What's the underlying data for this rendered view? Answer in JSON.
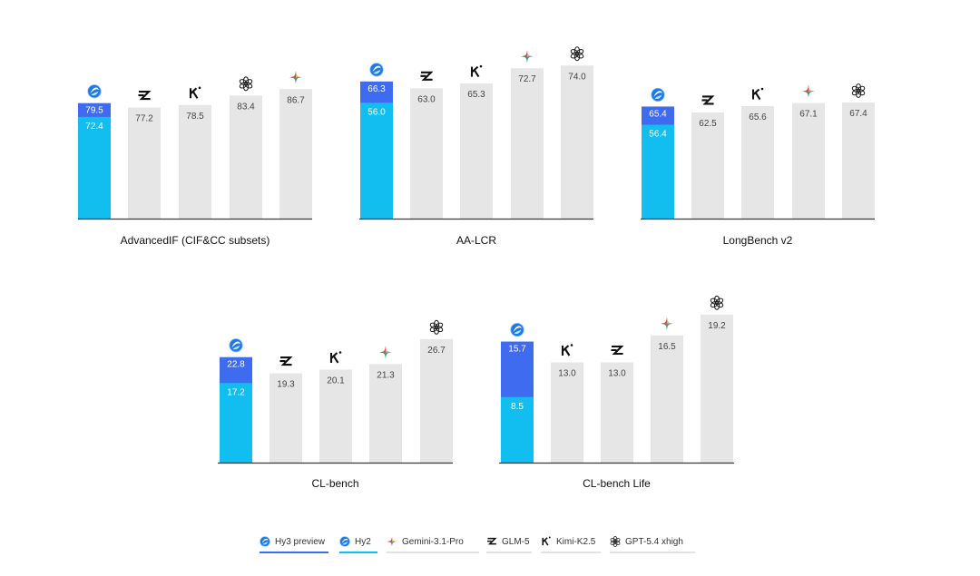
{
  "colors": {
    "hy3": "#3f6bf0",
    "hy2": "#12bef0",
    "other": "#e6e6e6",
    "axis": "#3a3a3a",
    "legend_line_other": "#e2e2e2"
  },
  "models": {
    "hy3": "Hy3 preview",
    "hy2": "Hy2",
    "gemini": "Gemini-3.1-Pro",
    "glm": "GLM-5",
    "kimi": "Kimi-K2.5",
    "gpt": "GPT-5.4 xhigh"
  },
  "legend": [
    {
      "key": "hy3",
      "label": "Hy3 preview",
      "icon": "hunyuan-icon",
      "line_color": "#3f6bf0"
    },
    {
      "key": "hy2",
      "label": "Hy2",
      "icon": "hunyuan-icon",
      "line_color": "#12bef0"
    },
    {
      "key": "gemini",
      "label": "Gemini-3.1-Pro",
      "icon": "gemini-icon",
      "line_color": "#e2e2e2"
    },
    {
      "key": "glm",
      "label": "GLM-5",
      "icon": "glm-icon",
      "line_color": "#e2e2e2"
    },
    {
      "key": "kimi",
      "label": "Kimi-K2.5",
      "icon": "kimi-icon",
      "line_color": "#e2e2e2"
    },
    {
      "key": "gpt",
      "label": "GPT-5.4 xhigh",
      "icon": "openai-icon",
      "line_color": "#e2e2e2"
    }
  ],
  "chart_data": [
    {
      "type": "bar",
      "title": "AdvancedIF (CIF&CC subsets)",
      "categories": [
        "Hunyuan",
        "GLM-5",
        "Kimi-K2.5",
        "GPT-5.4 xhigh",
        "Gemini-3.1-Pro"
      ],
      "icons": [
        "hunyuan-icon",
        "glm-icon",
        "kimi-icon",
        "openai-icon",
        "gemini-icon"
      ],
      "series": [
        {
          "name": "Hy3 preview",
          "values": [
            79.5,
            null,
            null,
            null,
            null
          ]
        },
        {
          "name": "Hy2",
          "values": [
            72.4,
            null,
            null,
            null,
            null
          ]
        },
        {
          "name": "Others",
          "values": [
            null,
            77.2,
            78.5,
            83.4,
            86.7
          ]
        }
      ],
      "labels": [
        "79.5",
        "72.4",
        "77.2",
        "78.5",
        "83.4",
        "86.7"
      ],
      "ylim": [
        20,
        90
      ]
    },
    {
      "type": "bar",
      "title": "AA-LCR",
      "categories": [
        "Hunyuan",
        "GLM-5",
        "Kimi-K2.5",
        "Gemini-3.1-Pro",
        "GPT-5.4 xhigh"
      ],
      "icons": [
        "hunyuan-icon",
        "glm-icon",
        "kimi-icon",
        "gemini-icon",
        "openai-icon"
      ],
      "series": [
        {
          "name": "Hy3 preview",
          "values": [
            66.3,
            null,
            null,
            null,
            null
          ]
        },
        {
          "name": "Hy2",
          "values": [
            56.0,
            null,
            null,
            null,
            null
          ]
        },
        {
          "name": "Others",
          "values": [
            null,
            63.0,
            65.3,
            72.7,
            74.0
          ]
        }
      ],
      "labels": [
        "66.3",
        "56.0",
        "63.0",
        "65.3",
        "72.7",
        "74.0"
      ],
      "ylim": [
        0,
        80
      ]
    },
    {
      "type": "bar",
      "title": "LongBench v2",
      "categories": [
        "Hunyuan",
        "GLM-5",
        "Kimi-K2.5",
        "Gemini-3.1-Pro",
        "GPT-5.4 xhigh"
      ],
      "icons": [
        "hunyuan-icon",
        "glm-icon",
        "kimi-icon",
        "gemini-icon",
        "openai-icon"
      ],
      "series": [
        {
          "name": "Hy3 preview",
          "values": [
            65.4,
            null,
            null,
            null,
            null
          ]
        },
        {
          "name": "Hy2",
          "values": [
            56.4,
            null,
            null,
            null,
            null
          ]
        },
        {
          "name": "Others",
          "values": [
            null,
            62.5,
            65.6,
            67.1,
            67.4
          ]
        }
      ],
      "labels": [
        "65.4",
        "56.4",
        "62.5",
        "65.6",
        "67.1",
        "67.4"
      ],
      "ylim": [
        10,
        70
      ]
    },
    {
      "type": "bar",
      "title": "CL-bench",
      "categories": [
        "Hunyuan",
        "GLM-5",
        "Kimi-K2.5",
        "Gemini-3.1-Pro",
        "GPT-5.4 xhigh"
      ],
      "icons": [
        "hunyuan-icon",
        "glm-icon",
        "kimi-icon",
        "gemini-icon",
        "openai-icon"
      ],
      "series": [
        {
          "name": "Hy3 preview",
          "values": [
            22.8,
            null,
            null,
            null,
            null
          ]
        },
        {
          "name": "Hy2",
          "values": [
            17.2,
            null,
            null,
            null,
            null
          ]
        },
        {
          "name": "Others",
          "values": [
            null,
            19.3,
            20.1,
            21.3,
            26.7
          ]
        }
      ],
      "labels": [
        "22.8",
        "17.2",
        "19.3",
        "20.1",
        "21.3",
        "26.7"
      ],
      "ylim": [
        0,
        30
      ]
    },
    {
      "type": "bar",
      "title": "CL-bench Life",
      "categories": [
        "Hunyuan",
        "Kimi-K2.5",
        "GLM-5",
        "Gemini-3.1-Pro",
        "GPT-5.4 xhigh"
      ],
      "icons": [
        "hunyuan-icon",
        "kimi-icon",
        "glm-icon",
        "gemini-icon",
        "openai-icon"
      ],
      "series": [
        {
          "name": "Hy3 preview",
          "values": [
            15.7,
            null,
            null,
            null,
            null
          ]
        },
        {
          "name": "Hy2",
          "values": [
            8.5,
            null,
            null,
            null,
            null
          ]
        },
        {
          "name": "Others",
          "values": [
            null,
            13.0,
            13.0,
            16.5,
            19.2
          ]
        }
      ],
      "labels": [
        "15.7",
        "8.5",
        "13.0",
        "13.0",
        "16.5",
        "19.2"
      ],
      "ylim": [
        0,
        22
      ]
    }
  ]
}
